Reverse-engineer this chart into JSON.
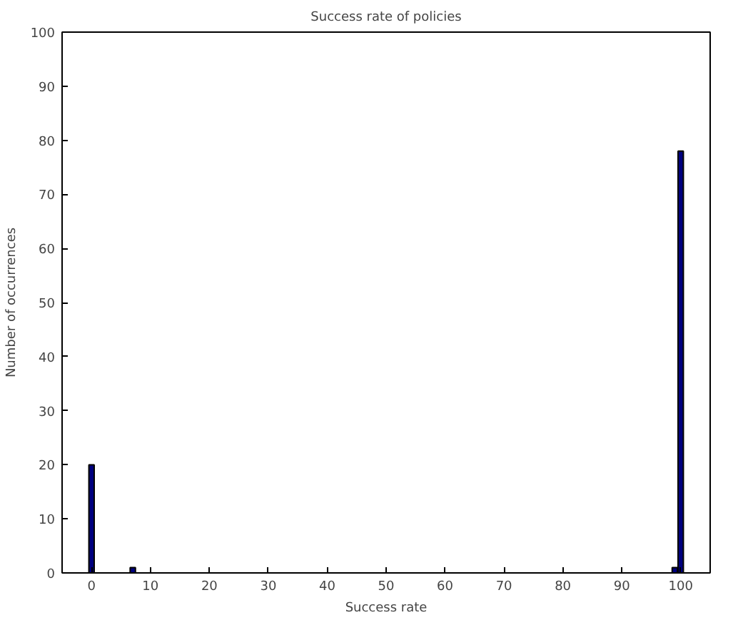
{
  "chart_data": {
    "type": "bar",
    "title": "Success rate of policies",
    "xlabel": "Success rate",
    "ylabel": "Number of occurrences",
    "x": [
      0,
      7,
      99,
      100
    ],
    "values": [
      20,
      1,
      1,
      78
    ],
    "color": "#00007f",
    "xlim": [
      -5,
      105
    ],
    "xticks": [
      0,
      10,
      20,
      30,
      40,
      50,
      60,
      70,
      80,
      90,
      100
    ],
    "ylim": [
      0,
      100
    ],
    "yticks": [
      0,
      10,
      20,
      30,
      40,
      50,
      60,
      70,
      80,
      90,
      100
    ]
  }
}
